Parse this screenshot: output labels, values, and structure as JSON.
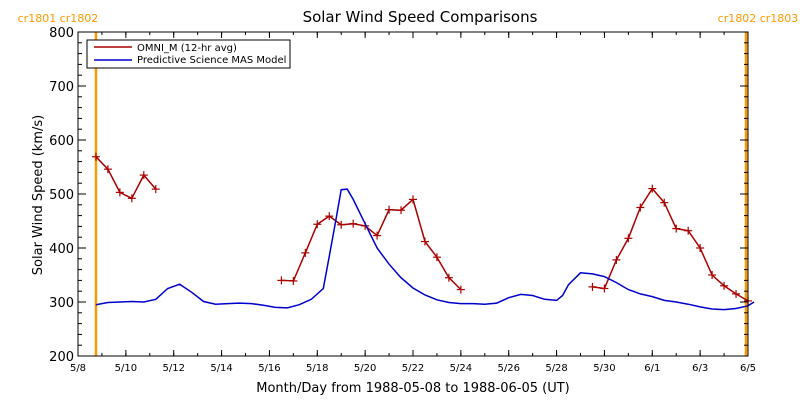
{
  "chart_data": {
    "type": "line",
    "title": "Solar Wind Speed Comparisons",
    "xlabel": "Month/Day from 1988-05-08 to 1988-06-05 (UT)",
    "ylabel": "Solar Wind Speed (km/s)",
    "ylim": [
      200,
      800
    ],
    "xlim": [
      "1988-05-08",
      "1988-06-05"
    ],
    "x_ticks": [
      {
        "date": "1988-05-08",
        "label": "5/8"
      },
      {
        "date": "1988-05-10",
        "label": "5/10"
      },
      {
        "date": "1988-05-12",
        "label": "5/12"
      },
      {
        "date": "1988-05-14",
        "label": "5/14"
      },
      {
        "date": "1988-05-16",
        "label": "5/16"
      },
      {
        "date": "1988-05-18",
        "label": "5/18"
      },
      {
        "date": "1988-05-20",
        "label": "5/20"
      },
      {
        "date": "1988-05-22",
        "label": "5/22"
      },
      {
        "date": "1988-05-24",
        "label": "5/24"
      },
      {
        "date": "1988-05-26",
        "label": "5/26"
      },
      {
        "date": "1988-05-28",
        "label": "5/28"
      },
      {
        "date": "1988-05-30",
        "label": "5/30"
      },
      {
        "date": "1988-06-01",
        "label": "6/1"
      },
      {
        "date": "1988-06-03",
        "label": "6/3"
      },
      {
        "date": "1988-06-05",
        "label": "6/5"
      }
    ],
    "y_ticks": [
      200,
      300,
      400,
      500,
      600,
      700,
      800
    ],
    "grid": false,
    "legend_position": "top-left",
    "carrington_markers": [
      {
        "date": "1988-05-08T18:00",
        "label": "cr1801 cr1802",
        "color": "#ff9900"
      },
      {
        "date": "1988-06-04T22:00",
        "label": "cr1802 cr1803",
        "color": "#ff9900"
      }
    ],
    "series": [
      {
        "name": "OMNI_M (12-hr avg)",
        "color": "#aa0000",
        "markers": true,
        "segments": [
          [
            [
              "1988-05-08T18:00",
              569
            ],
            [
              "1988-05-09T06:00",
              546
            ],
            [
              "1988-05-09T18:00",
              503
            ],
            [
              "1988-05-10T06:00",
              492
            ],
            [
              "1988-05-10T18:00",
              535
            ],
            [
              "1988-05-11T06:00",
              509
            ]
          ],
          [
            [
              "1988-05-16T12:00",
              340
            ],
            [
              "1988-05-17T00:00",
              339
            ],
            [
              "1988-05-17T12:00",
              391
            ],
            [
              "1988-05-18T00:00",
              444
            ],
            [
              "1988-05-18T12:00",
              459
            ],
            [
              "1988-05-19T00:00",
              443
            ],
            [
              "1988-05-19T12:00",
              445
            ],
            [
              "1988-05-20T00:00",
              441
            ],
            [
              "1988-05-20T12:00",
              423
            ],
            [
              "1988-05-21T00:00",
              471
            ],
            [
              "1988-05-21T12:00",
              470
            ],
            [
              "1988-05-22T00:00",
              490
            ],
            [
              "1988-05-22T12:00",
              412
            ],
            [
              "1988-05-23T00:00",
              383
            ],
            [
              "1988-05-23T12:00",
              345
            ],
            [
              "1988-05-24T00:00",
              323
            ]
          ],
          [
            [
              "1988-05-29T12:00",
              328
            ],
            [
              "1988-05-30T00:00",
              325
            ],
            [
              "1988-05-30T12:00",
              378
            ],
            [
              "1988-05-31T00:00",
              418
            ],
            [
              "1988-05-31T12:00",
              475
            ],
            [
              "1988-06-01T00:00",
              510
            ],
            [
              "1988-06-01T12:00",
              484
            ],
            [
              "1988-06-02T00:00",
              436
            ],
            [
              "1988-06-02T12:00",
              432
            ],
            [
              "1988-06-03T00:00",
              400
            ],
            [
              "1988-06-03T12:00",
              350
            ],
            [
              "1988-06-04T00:00",
              330
            ],
            [
              "1988-06-04T12:00",
              315
            ],
            [
              "1988-06-05T00:00",
              302
            ]
          ]
        ]
      },
      {
        "name": "Predictive Science MAS Model",
        "color": "#0000cc",
        "markers": false,
        "segments": [
          [
            [
              "1988-05-08T18:00",
              295
            ],
            [
              "1988-05-09T06:00",
              299
            ],
            [
              "1988-05-09T18:00",
              300
            ],
            [
              "1988-05-10T06:00",
              301
            ],
            [
              "1988-05-10T18:00",
              300
            ],
            [
              "1988-05-11T06:00",
              305
            ],
            [
              "1988-05-11T18:00",
              325
            ],
            [
              "1988-05-12T06:00",
              333
            ],
            [
              "1988-05-12T18:00",
              318
            ],
            [
              "1988-05-13T06:00",
              301
            ],
            [
              "1988-05-13T18:00",
              296
            ],
            [
              "1988-05-14T06:00",
              297
            ],
            [
              "1988-05-14T18:00",
              298
            ],
            [
              "1988-05-15T06:00",
              297
            ],
            [
              "1988-05-15T18:00",
              294
            ],
            [
              "1988-05-16T06:00",
              290
            ],
            [
              "1988-05-16T18:00",
              289
            ],
            [
              "1988-05-17T06:00",
              295
            ],
            [
              "1988-05-17T18:00",
              305
            ],
            [
              "1988-05-18T06:00",
              325
            ],
            [
              "1988-05-18T12:00",
              385
            ],
            [
              "1988-05-18T18:00",
              445
            ],
            [
              "1988-05-19T00:00",
              508
            ],
            [
              "1988-05-19T06:00",
              509
            ],
            [
              "1988-05-19T12:00",
              490
            ],
            [
              "1988-05-20T00:00",
              445
            ],
            [
              "1988-05-20T12:00",
              400
            ],
            [
              "1988-05-21T00:00",
              370
            ],
            [
              "1988-05-21T12:00",
              345
            ],
            [
              "1988-05-22T00:00",
              326
            ],
            [
              "1988-05-22T12:00",
              313
            ],
            [
              "1988-05-23T00:00",
              304
            ],
            [
              "1988-05-23T12:00",
              299
            ],
            [
              "1988-05-24T00:00",
              297
            ],
            [
              "1988-05-24T12:00",
              297
            ],
            [
              "1988-05-25T00:00",
              296
            ],
            [
              "1988-05-25T12:00",
              298
            ],
            [
              "1988-05-26T00:00",
              308
            ],
            [
              "1988-05-26T12:00",
              314
            ],
            [
              "1988-05-27T00:00",
              312
            ],
            [
              "1988-05-27T12:00",
              305
            ],
            [
              "1988-05-28T00:00",
              303
            ],
            [
              "1988-05-28T06:00",
              312
            ],
            [
              "1988-05-28T12:00",
              332
            ],
            [
              "1988-05-29T00:00",
              354
            ],
            [
              "1988-05-29T12:00",
              352
            ],
            [
              "1988-05-30T00:00",
              347
            ],
            [
              "1988-05-30T12:00",
              336
            ],
            [
              "1988-05-31T00:00",
              323
            ],
            [
              "1988-05-31T12:00",
              315
            ],
            [
              "1988-06-01T00:00",
              310
            ],
            [
              "1988-06-01T12:00",
              303
            ],
            [
              "1988-06-02T00:00",
              300
            ],
            [
              "1988-06-02T12:00",
              296
            ],
            [
              "1988-06-03T00:00",
              291
            ],
            [
              "1988-06-03T12:00",
              287
            ],
            [
              "1988-06-04T00:00",
              286
            ],
            [
              "1988-06-04T12:00",
              288
            ],
            [
              "1988-06-05T00:00",
              293
            ],
            [
              "1988-06-05T06:00",
              300
            ]
          ]
        ]
      }
    ]
  }
}
